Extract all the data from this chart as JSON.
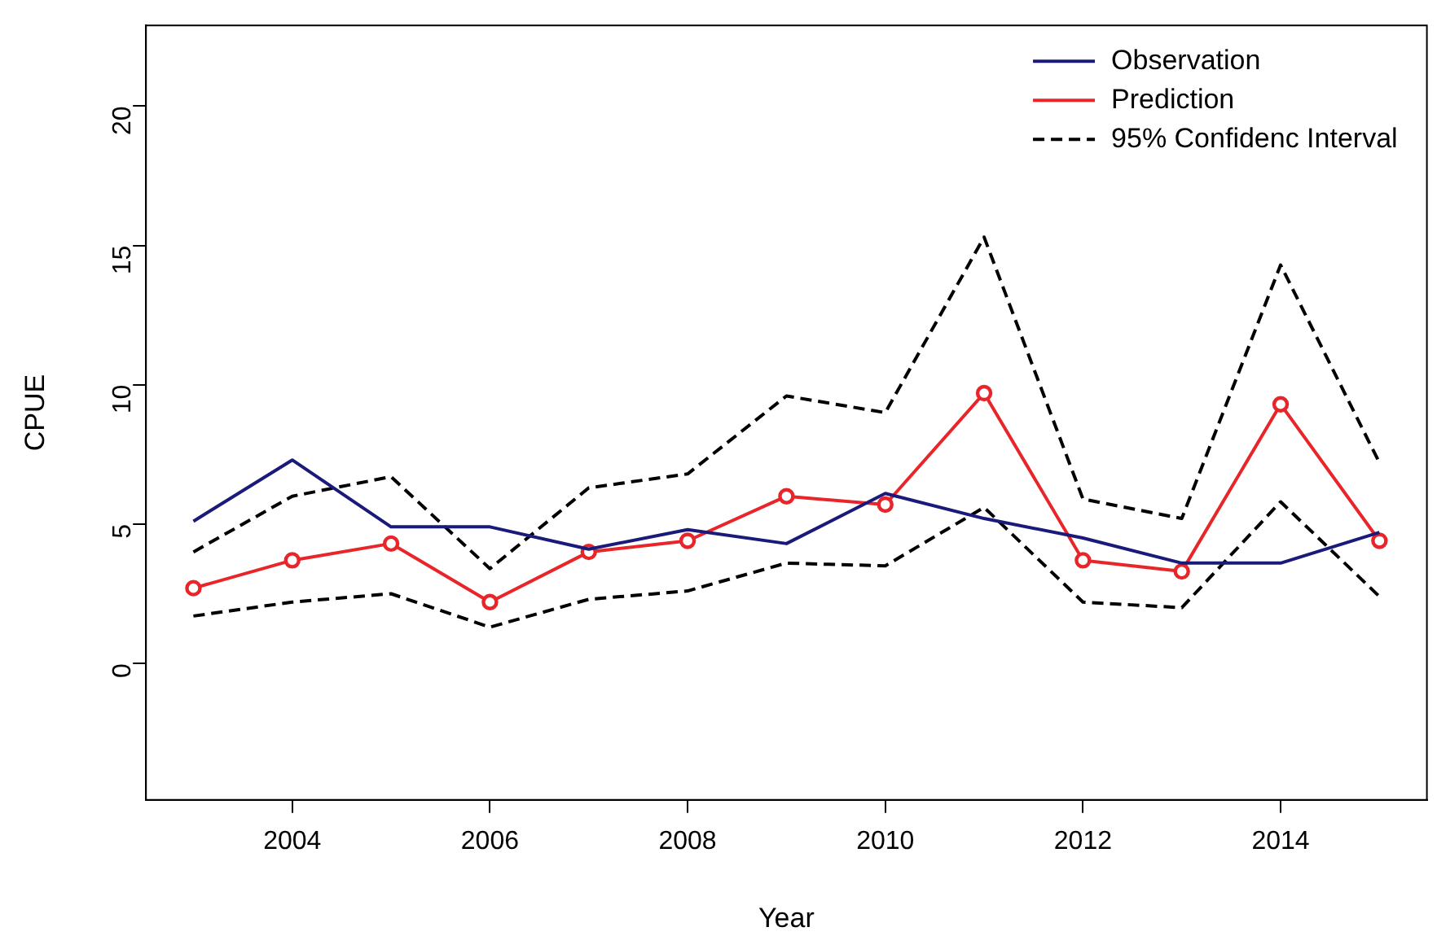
{
  "chart_data": {
    "type": "line",
    "xlabel": "Year",
    "ylabel": "CPUE",
    "x": [
      2003,
      2004,
      2005,
      2006,
      2007,
      2008,
      2009,
      2010,
      2011,
      2012,
      2013,
      2014,
      2015
    ],
    "xlim": [
      2002.52,
      2015.48
    ],
    "xticks": [
      2004,
      2006,
      2008,
      2010,
      2012,
      2014
    ],
    "ylim": [
      -4.9,
      22.9
    ],
    "yticks": [
      0,
      5,
      10,
      15,
      20
    ],
    "grid": false,
    "legend": "top right",
    "series": [
      {
        "name": "Observation",
        "color": "#1a1a7a",
        "marker": "none",
        "line_style": "solid",
        "values": [
          5.1,
          7.3,
          4.9,
          4.9,
          4.1,
          4.8,
          4.3,
          6.1,
          5.2,
          4.5,
          3.6,
          3.6,
          4.7
        ]
      },
      {
        "name": "Prediction",
        "color": "#e8262a",
        "marker": "circle",
        "line_style": "solid",
        "values": [
          2.7,
          3.7,
          4.3,
          2.2,
          4.0,
          4.4,
          6.0,
          5.7,
          9.7,
          3.7,
          3.3,
          9.3,
          4.4
        ]
      },
      {
        "name": "95% Confidenc Interval",
        "color": "#000000",
        "marker": "none",
        "line_style": "dashed",
        "values": [
          4.0,
          6.0,
          6.7,
          3.4,
          6.3,
          6.8,
          9.6,
          9.0,
          15.3,
          5.9,
          5.2,
          14.3,
          7.2
        ]
      },
      {
        "color": "#000000",
        "marker": "none",
        "line_style": "dashed",
        "values": [
          1.7,
          2.2,
          2.5,
          1.3,
          2.3,
          2.6,
          3.6,
          3.5,
          5.6,
          2.2,
          2.0,
          5.8,
          2.4
        ]
      }
    ]
  }
}
